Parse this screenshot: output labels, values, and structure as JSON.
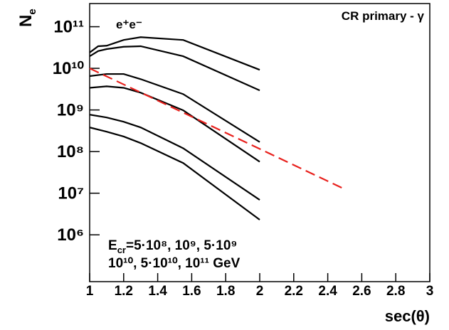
{
  "chart_data": {
    "type": "line",
    "x_label": "sec(θ)",
    "y_label": "N",
    "y_label_sub": "e",
    "annotations": [
      "e⁺e⁻",
      "CR primary - γ"
    ],
    "energy_label": {
      "symbol": "E",
      "sub": "cr",
      "line1": "=5·10⁸, 10⁹, 5·10⁹",
      "line2": "10¹⁰, 5·10¹⁰, 10¹¹ GeV"
    },
    "log_y": true,
    "xlim": [
      1,
      3
    ],
    "xticks": [
      1,
      1.2,
      1.4,
      1.6,
      1.8,
      2,
      2.2,
      2.4,
      2.6,
      2.8,
      3
    ],
    "ylim": [
      75000,
      360000000000
    ],
    "yticks": [
      {
        "value": 1000000,
        "label": "10⁶"
      },
      {
        "value": 10000000,
        "label": "10⁷"
      },
      {
        "value": 100000000,
        "label": "10⁸"
      },
      {
        "value": 1000000000,
        "label": "10⁹"
      },
      {
        "value": 10000000000,
        "label": "10¹⁰"
      },
      {
        "value": 100000000000,
        "label": "10¹¹"
      }
    ],
    "series": [
      {
        "color": "#000000",
        "x": [
          1,
          1.05,
          1.1,
          1.2,
          1.3,
          1.55,
          2
        ],
        "values": [
          24000000000,
          34000000000,
          35000000000,
          48000000000,
          56000000000,
          48000000000,
          9200000000
        ]
      },
      {
        "color": "#000000",
        "x": [
          1,
          1.05,
          1.1,
          1.2,
          1.3,
          1.55,
          2
        ],
        "values": [
          19500000000,
          26000000000,
          29000000000,
          33000000000,
          34000000000,
          19500000000,
          2950000000
        ]
      },
      {
        "color": "#000000",
        "x": [
          1,
          1.1,
          1.2,
          1.3,
          1.55,
          2
        ],
        "values": [
          6500000000,
          7300000000,
          7300000000,
          5500000000,
          2400000000,
          170000000
        ]
      },
      {
        "color": "#000000",
        "x": [
          1,
          1.1,
          1.2,
          1.3,
          1.55,
          2
        ],
        "values": [
          3400000000,
          3700000000,
          3400000000,
          2600000000,
          980000000,
          57000000
        ]
      },
      {
        "color": "#000000",
        "x": [
          1,
          1.1,
          1.2,
          1.3,
          1.55,
          2
        ],
        "values": [
          770000000,
          660000000,
          520000000,
          380000000,
          120000000,
          6900000
        ]
      },
      {
        "color": "#000000",
        "x": [
          1,
          1.1,
          1.2,
          1.3,
          1.55,
          2
        ],
        "values": [
          380000000,
          300000000,
          230000000,
          160000000,
          53000000,
          2300000
        ]
      },
      {
        "color": "#e8201c",
        "dashed": true,
        "x": [
          1,
          2.5
        ],
        "values": [
          10000000000,
          12500000
        ]
      }
    ]
  }
}
